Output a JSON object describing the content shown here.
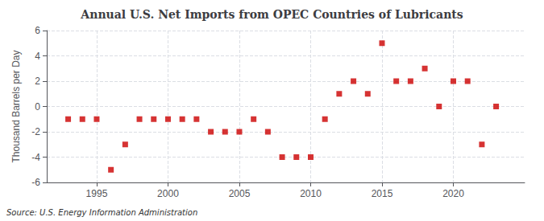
{
  "chart_data": {
    "type": "scatter",
    "title": "Annual U.S. Net Imports from OPEC Countries of Lubricants",
    "ylabel": "Thousand Barrels per Day",
    "source": "Source: U.S. Energy Information Administration",
    "x": [
      1993,
      1994,
      1995,
      1996,
      1997,
      1998,
      1999,
      2000,
      2001,
      2002,
      2003,
      2004,
      2005,
      2006,
      2007,
      2008,
      2009,
      2010,
      2011,
      2012,
      2013,
      2014,
      2015,
      2016,
      2017,
      2018,
      2019,
      2020,
      2021,
      2022,
      2023
    ],
    "values": [
      -1,
      -1,
      -1,
      -5,
      -3,
      -1,
      -1,
      -1,
      -1,
      -1,
      -2,
      -2,
      -2,
      -1,
      -2,
      -4,
      -4,
      -4,
      -1,
      1,
      2,
      1,
      5,
      2,
      2,
      3,
      0,
      2,
      2,
      -3,
      0
    ],
    "color": "#cc0000",
    "marker": "square",
    "xlim": [
      1991.5,
      2025
    ],
    "xticks": [
      1995,
      2000,
      2005,
      2010,
      2015,
      2020
    ],
    "ylim": [
      -6,
      6
    ],
    "yticks": [
      -6,
      -4,
      -2,
      0,
      2,
      4,
      6
    ],
    "grid": true
  }
}
